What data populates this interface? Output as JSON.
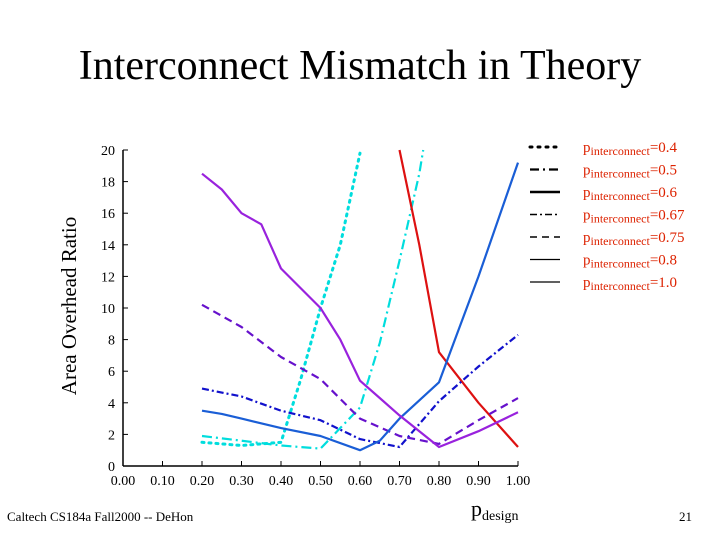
{
  "slide": {
    "title": "Interconnect Mismatch in Theory",
    "footer": "Caltech CS184a Fall2000 -- DeHon",
    "page_number": "21"
  },
  "chart_data": {
    "type": "line",
    "title": "",
    "ylabel": "Area Overhead Ratio",
    "xlabel": {
      "main": "p",
      "sub": "design"
    },
    "xlim": [
      0,
      1
    ],
    "ylim": [
      0,
      20
    ],
    "x_ticks": [
      "0.00",
      "0.10",
      "0.20",
      "0.30",
      "0.40",
      "0.50",
      "0.60",
      "0.70",
      "0.80",
      "0.90",
      "1.00"
    ],
    "y_ticks": [
      "0",
      "2",
      "4",
      "6",
      "8",
      "10",
      "12",
      "14",
      "16",
      "18",
      "20"
    ],
    "legend_position": "top-right",
    "series": [
      {
        "label_main": "p",
        "label_sub": "interconnect",
        "label_value": "=0.4",
        "color": "#00dddd",
        "dash": "2 5",
        "x": [
          0.2,
          0.3,
          0.4,
          0.45,
          0.5,
          0.55,
          0.6
        ],
        "y": [
          1.5,
          1.3,
          1.5,
          5.5,
          10.0,
          14.0,
          19.8
        ]
      },
      {
        "label_main": "p",
        "label_sub": "interconnect",
        "label_value": "=0.5",
        "color": "#00dddd",
        "dash": "10 4 2 4",
        "x": [
          0.2,
          0.3,
          0.4,
          0.5,
          0.6,
          0.65,
          0.7,
          0.75,
          0.76
        ],
        "y": [
          1.9,
          1.6,
          1.3,
          1.1,
          3.7,
          7.8,
          13.0,
          18.5,
          20.0
        ]
      },
      {
        "label_main": "p",
        "label_sub": "interconnect",
        "label_value": "=0.6",
        "color": "#dd1111",
        "dash": "",
        "x": [
          0.7,
          0.75,
          0.8,
          0.9,
          1.0
        ],
        "y": [
          20.0,
          14.0,
          7.2,
          4.0,
          1.2
        ]
      },
      {
        "label_main": "p",
        "label_sub": "interconnect",
        "label_value": "=0.67",
        "color": "#1111cc",
        "dash": "7 3 2 3",
        "x": [
          0.2,
          0.3,
          0.4,
          0.5,
          0.6,
          0.7,
          0.8,
          0.9,
          1.0
        ],
        "y": [
          4.9,
          4.4,
          3.5,
          2.9,
          1.7,
          1.2,
          4.1,
          6.3,
          8.3
        ]
      },
      {
        "label_main": "p",
        "label_sub": "interconnect",
        "label_value": "=0.75",
        "color": "#6611cc",
        "dash": "8 5",
        "x": [
          0.2,
          0.3,
          0.4,
          0.5,
          0.6,
          0.7,
          0.8,
          0.9,
          1.0
        ],
        "y": [
          10.2,
          8.8,
          6.9,
          5.5,
          3.0,
          1.9,
          1.4,
          2.9,
          4.3
        ]
      },
      {
        "label_main": "p",
        "label_sub": "interconnect",
        "label_value": "=0.8",
        "color": "#1a5ed6",
        "dash": "",
        "x": [
          0.2,
          0.25,
          0.3,
          0.4,
          0.5,
          0.6,
          0.65,
          0.7,
          0.8,
          0.9,
          1.0
        ],
        "y": [
          3.5,
          3.3,
          3.0,
          2.4,
          1.9,
          1.0,
          1.6,
          3.0,
          5.3,
          12.0,
          19.2
        ]
      },
      {
        "label_main": "p",
        "label_sub": "interconnect",
        "label_value": "=1.0",
        "color": "#9922dd",
        "dash": "",
        "x": [
          0.2,
          0.25,
          0.3,
          0.35,
          0.4,
          0.5,
          0.55,
          0.6,
          0.7,
          0.8,
          0.9,
          1.0
        ],
        "y": [
          18.5,
          17.5,
          16.0,
          15.3,
          12.5,
          10.0,
          8.0,
          5.4,
          3.2,
          1.2,
          2.2,
          3.4
        ]
      }
    ],
    "legend_text_color": "#dd2200"
  }
}
